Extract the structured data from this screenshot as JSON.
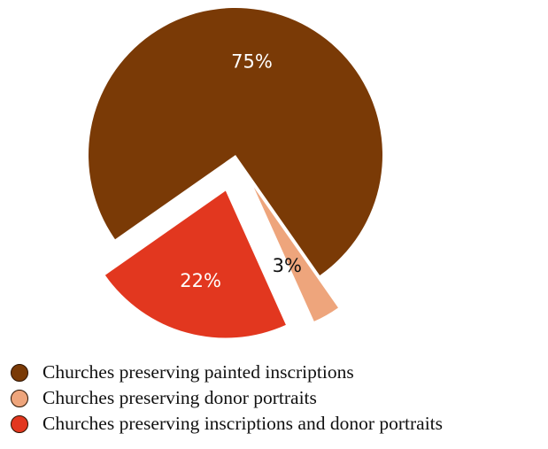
{
  "chart_data": {
    "type": "pie",
    "title": "",
    "slices": [
      {
        "name": "Churches preserving painted inscriptions",
        "value": 75,
        "label": "75%",
        "color": "#7a3a06",
        "label_color": "#ffffff",
        "exploded": false
      },
      {
        "name": "Churches preserving donor portraits",
        "value": 3,
        "label": "3%",
        "color": "#eea57c",
        "label_color": "#111111",
        "exploded": true
      },
      {
        "name": "Churches preserving inscriptions and donor portraits",
        "value": 22,
        "label": "22%",
        "color": "#e2371f",
        "label_color": "#ffffff",
        "exploded": true
      }
    ],
    "legend_position": "bottom-left"
  }
}
